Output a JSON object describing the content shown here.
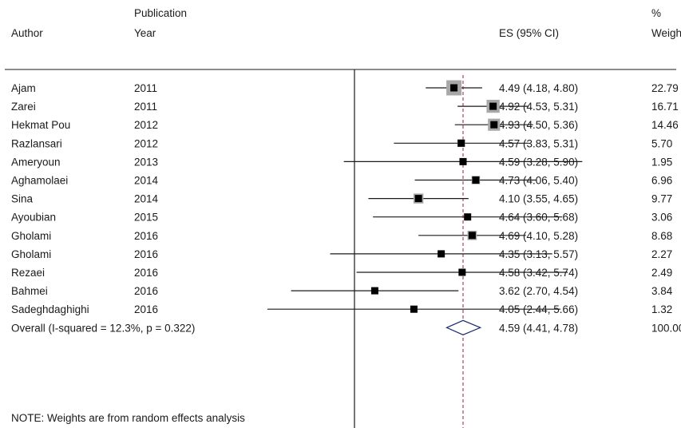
{
  "headers": {
    "author": "Author",
    "year_top": "Publication",
    "year_bottom": "Year",
    "es": "ES (95% CI)",
    "weight_top": "%",
    "weight_bottom": "Weight"
  },
  "note": "NOTE: Weights are from random effects analysis",
  "chart_data": {
    "type": "forest",
    "reference_line": 4.59,
    "studies": [
      {
        "author": "Ajam",
        "year": "2011",
        "es": 4.49,
        "lo": 4.18,
        "hi": 4.8,
        "ci_text": "4.49 (4.18, 4.80)",
        "weight": 22.79,
        "weight_text": "22.79"
      },
      {
        "author": "Zarei",
        "year": "2011",
        "es": 4.92,
        "lo": 4.53,
        "hi": 5.31,
        "ci_text": "4.92 (4.53, 5.31)",
        "weight": 16.71,
        "weight_text": "16.71"
      },
      {
        "author": "Hekmat Pou",
        "year": "2012",
        "es": 4.93,
        "lo": 4.5,
        "hi": 5.36,
        "ci_text": "4.93 (4.50, 5.36)",
        "weight": 14.46,
        "weight_text": "14.46"
      },
      {
        "author": "Razlansari",
        "year": "2012",
        "es": 4.57,
        "lo": 3.83,
        "hi": 5.31,
        "ci_text": "4.57 (3.83, 5.31)",
        "weight": 5.7,
        "weight_text": "5.70"
      },
      {
        "author": "Ameryoun",
        "year": "2013",
        "es": 4.59,
        "lo": 3.28,
        "hi": 5.9,
        "ci_text": "4.59 (3.28, 5.90)",
        "weight": 1.95,
        "weight_text": "1.95"
      },
      {
        "author": "Aghamolaei",
        "year": "2014",
        "es": 4.73,
        "lo": 4.06,
        "hi": 5.4,
        "ci_text": "4.73 (4.06, 5.40)",
        "weight": 6.96,
        "weight_text": "6.96"
      },
      {
        "author": "Sina",
        "year": "2014",
        "es": 4.1,
        "lo": 3.55,
        "hi": 4.65,
        "ci_text": "4.10 (3.55, 4.65)",
        "weight": 9.77,
        "weight_text": "9.77"
      },
      {
        "author": "Ayoubian",
        "year": "2015",
        "es": 4.64,
        "lo": 3.6,
        "hi": 5.68,
        "ci_text": "4.64 (3.60, 5.68)",
        "weight": 3.06,
        "weight_text": "3.06"
      },
      {
        "author": "Gholami",
        "year": "2016",
        "es": 4.69,
        "lo": 4.1,
        "hi": 5.28,
        "ci_text": "4.69 (4.10, 5.28)",
        "weight": 8.68,
        "weight_text": "8.68"
      },
      {
        "author": "Gholami",
        "year": "2016",
        "es": 4.35,
        "lo": 3.13,
        "hi": 5.57,
        "ci_text": "4.35 (3.13, 5.57)",
        "weight": 2.27,
        "weight_text": "2.27"
      },
      {
        "author": "Rezaei",
        "year": "2016",
        "es": 4.58,
        "lo": 3.42,
        "hi": 5.74,
        "ci_text": "4.58 (3.42, 5.74)",
        "weight": 2.49,
        "weight_text": "2.49"
      },
      {
        "author": "Bahmei",
        "year": "2016",
        "es": 3.62,
        "lo": 2.7,
        "hi": 4.54,
        "ci_text": "3.62 (2.70, 4.54)",
        "weight": 3.84,
        "weight_text": "3.84"
      },
      {
        "author": "Sadeghdaghighi",
        "year": "2016",
        "es": 4.05,
        "lo": 2.44,
        "hi": 5.66,
        "ci_text": "4.05 (2.44, 5.66)",
        "weight": 1.32,
        "weight_text": "1.32"
      }
    ],
    "overall": {
      "label": "Overall  (I-squared = 12.3%, p = 0.322)",
      "es": 4.59,
      "lo": 4.41,
      "hi": 4.78,
      "ci_text": "4.59 (4.41, 4.78)",
      "weight_text": "100.00"
    },
    "colors": {
      "ink": "#1a1a1a",
      "marker": "#000000",
      "marker_halo": "#a8a8a8",
      "reference_line": "#a3364a",
      "diamond": "#1a2a6b"
    }
  }
}
